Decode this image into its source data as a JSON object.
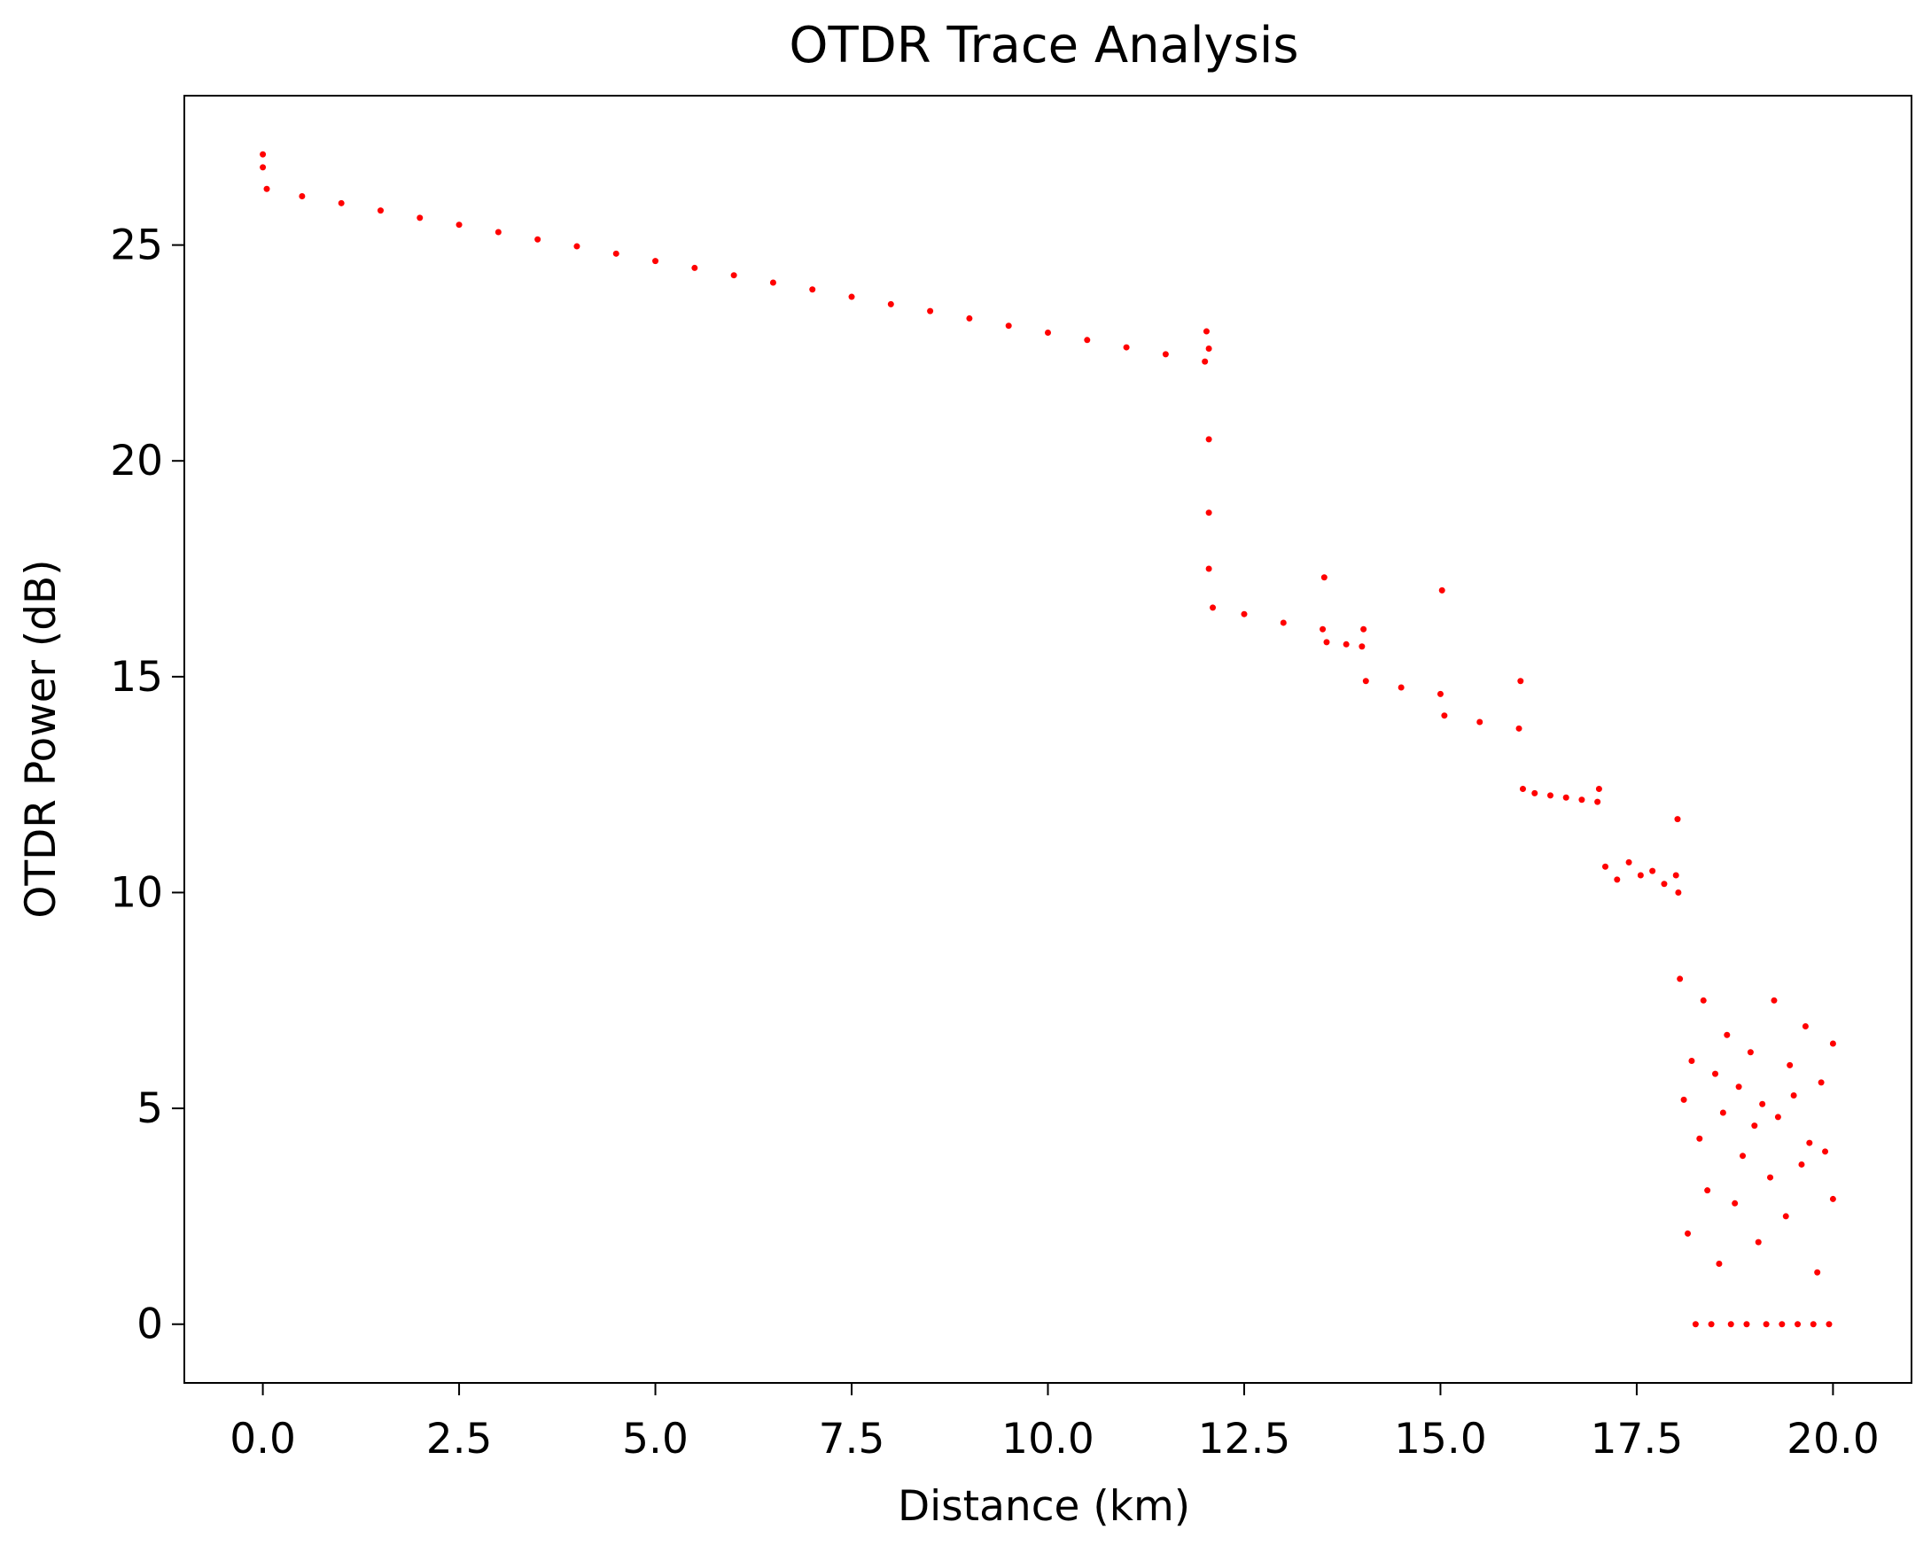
{
  "chart_data": {
    "type": "scatter",
    "title": "OTDR Trace Analysis",
    "x_label": "Distance (km)",
    "y_label": "OTDR Power (dB)",
    "color": "#ff0000",
    "grid": false,
    "xlim": [
      -1.0,
      21.0
    ],
    "ylim": [
      -1.36,
      28.46
    ],
    "xticks": [
      {
        "value": 0,
        "label": "0.0"
      },
      2.5,
      {
        "value": 5,
        "label": "5.0"
      },
      7.5,
      {
        "value": 10,
        "label": "10.0"
      },
      12.5,
      {
        "value": 15,
        "label": "15.0"
      },
      17.5,
      {
        "value": 20,
        "label": "20.0"
      }
    ],
    "yticks": [
      0,
      5,
      10,
      15,
      20,
      25
    ],
    "x": [
      0,
      0,
      0.05,
      0.5,
      1,
      1.5,
      2,
      2.5,
      3,
      3.5,
      4,
      4.5,
      5,
      5.5,
      6,
      6.5,
      7,
      7.5,
      8,
      8.5,
      9,
      9.5,
      10,
      10.5,
      11,
      11.5,
      12,
      12.02,
      12.05,
      12.05,
      12.05,
      12.05,
      12.1,
      12.5,
      13,
      13.5,
      13.52,
      13.55,
      13.8,
      14,
      14.02,
      14.05,
      14.5,
      15,
      15.02,
      15.05,
      15.5,
      16,
      16.02,
      16.05,
      16.2,
      16.4,
      16.6,
      16.8,
      17,
      17.02,
      17.1,
      17.25,
      17.4,
      17.55,
      17.7,
      17.85,
      18,
      18.02,
      18.03,
      18.05,
      18.1,
      18.15,
      18.2,
      18.25,
      18.3,
      18.35,
      18.4,
      18.45,
      18.5,
      18.55,
      18.6,
      18.65,
      18.7,
      18.75,
      18.8,
      18.85,
      18.9,
      18.95,
      19,
      19.05,
      19.1,
      19.15,
      19.2,
      19.25,
      19.3,
      19.35,
      19.4,
      19.45,
      19.5,
      19.55,
      19.6,
      19.65,
      19.7,
      19.75,
      19.8,
      19.85,
      19.9,
      19.95,
      20,
      20
    ],
    "values": [
      27.1,
      26.8,
      26.3,
      26.13,
      25.97,
      25.8,
      25.63,
      25.47,
      25.3,
      25.13,
      24.97,
      24.8,
      24.63,
      24.47,
      24.3,
      24.13,
      23.97,
      23.8,
      23.63,
      23.47,
      23.3,
      23.13,
      22.97,
      22.8,
      22.63,
      22.47,
      22.3,
      23,
      22.6,
      20.5,
      18.8,
      17.5,
      16.6,
      16.45,
      16.25,
      16.1,
      17.3,
      15.8,
      15.75,
      15.7,
      16.1,
      14.9,
      14.75,
      14.6,
      17,
      14.1,
      13.95,
      13.8,
      14.9,
      12.4,
      12.3,
      12.25,
      12.2,
      12.15,
      12.1,
      12.4,
      10.6,
      10.3,
      10.7,
      10.4,
      10.5,
      10.2,
      10.4,
      11.7,
      10,
      8,
      5.2,
      2.1,
      6.1,
      0,
      4.3,
      7.5,
      3.1,
      0,
      5.8,
      1.4,
      4.9,
      6.7,
      0,
      2.8,
      5.5,
      3.9,
      0,
      6.3,
      4.6,
      1.9,
      5.1,
      0,
      3.4,
      7.5,
      4.8,
      0,
      2.5,
      6,
      5.3,
      0,
      3.7,
      6.9,
      4.2,
      0,
      1.2,
      5.6,
      4,
      0,
      6.5,
      2.9
    ]
  }
}
